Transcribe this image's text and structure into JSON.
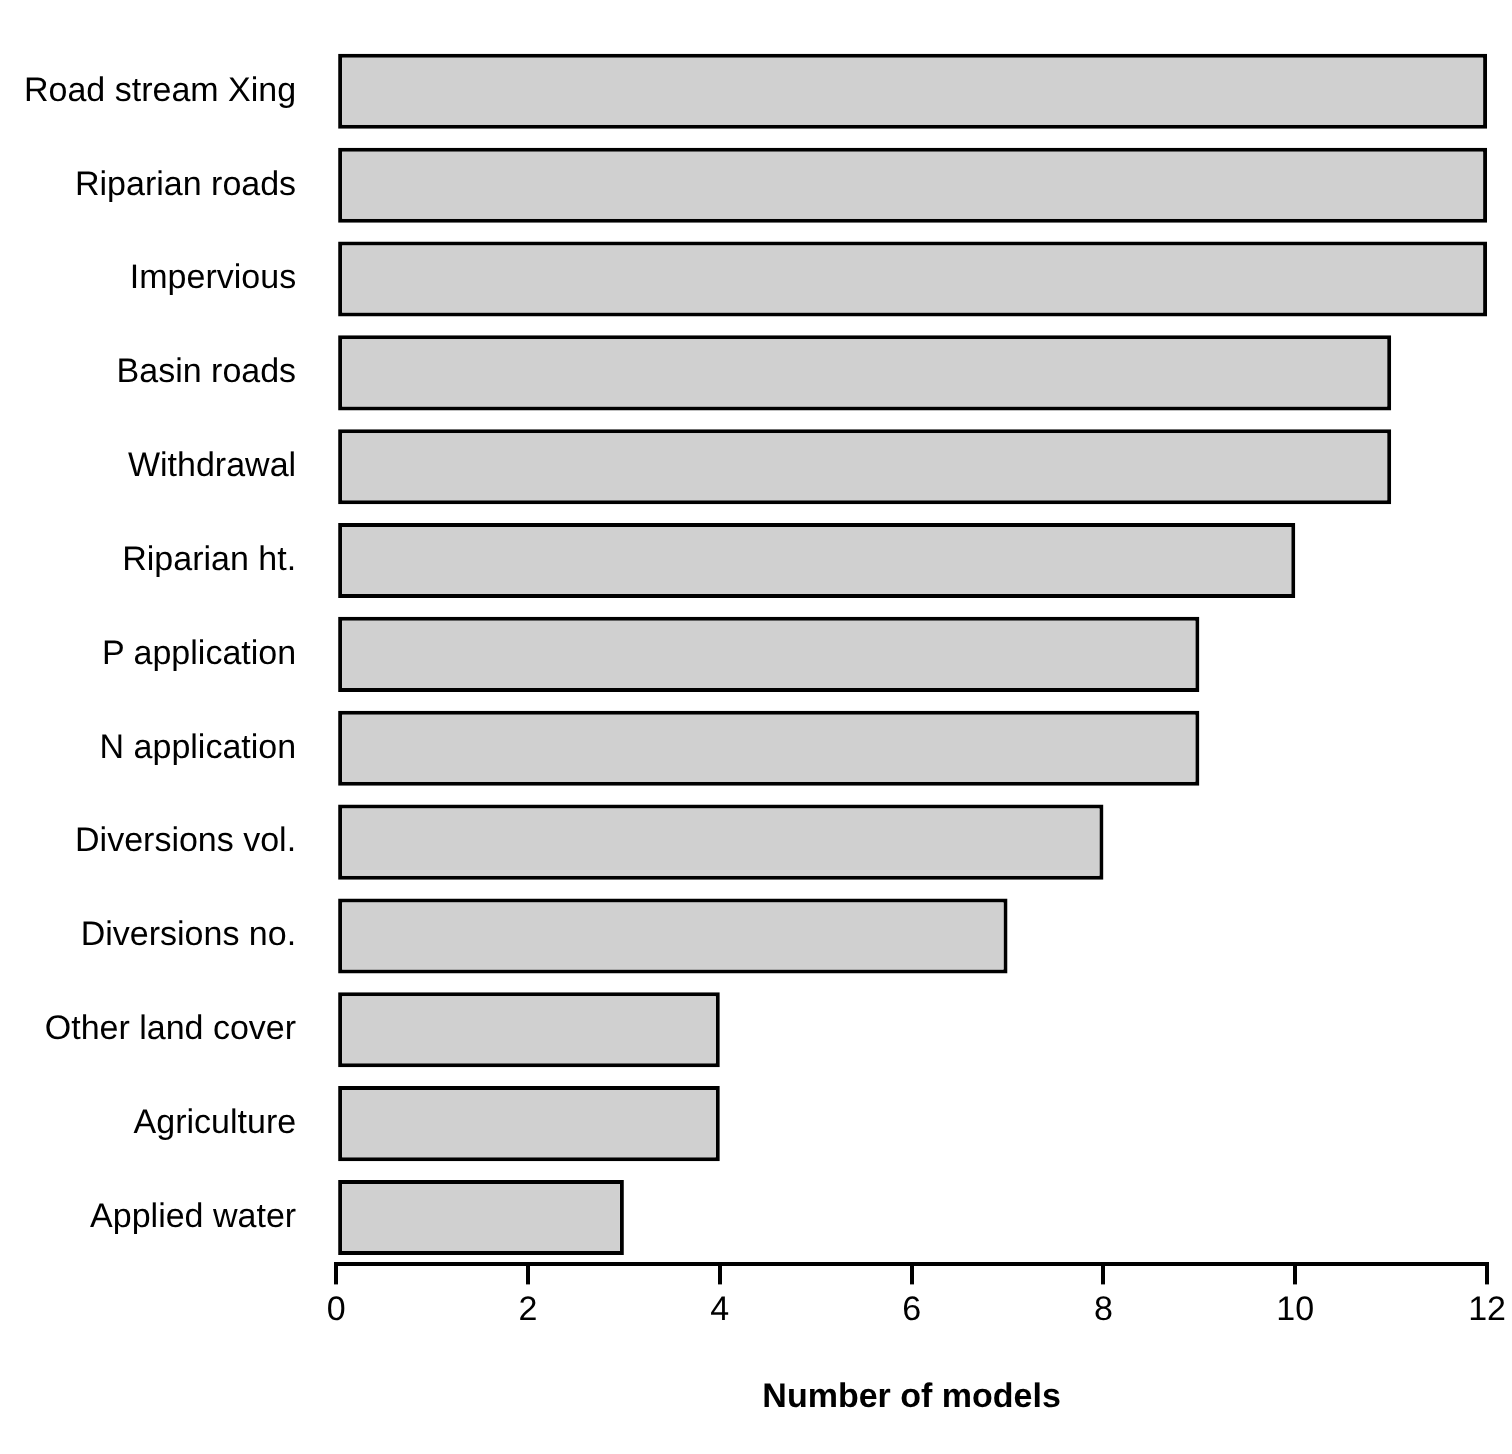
{
  "chart_data": {
    "type": "bar",
    "orientation": "horizontal",
    "xlabel": "Number of models",
    "categories": [
      "Road stream Xing",
      "Riparian roads",
      "Impervious",
      "Basin roads",
      "Withdrawal",
      "Riparian ht.",
      "P application",
      "N application",
      "Diversions vol.",
      "Diversions no.",
      "Other land cover",
      "Agriculture",
      "Applied water"
    ],
    "values": [
      12,
      12,
      12,
      11,
      11,
      10,
      9,
      9,
      8,
      7,
      4,
      4,
      3
    ],
    "color": "#d0d0d0",
    "xlim": [
      0,
      12
    ],
    "xticks": [
      0,
      2,
      4,
      6,
      8,
      10,
      12
    ],
    "grid": false,
    "legend": false
  }
}
